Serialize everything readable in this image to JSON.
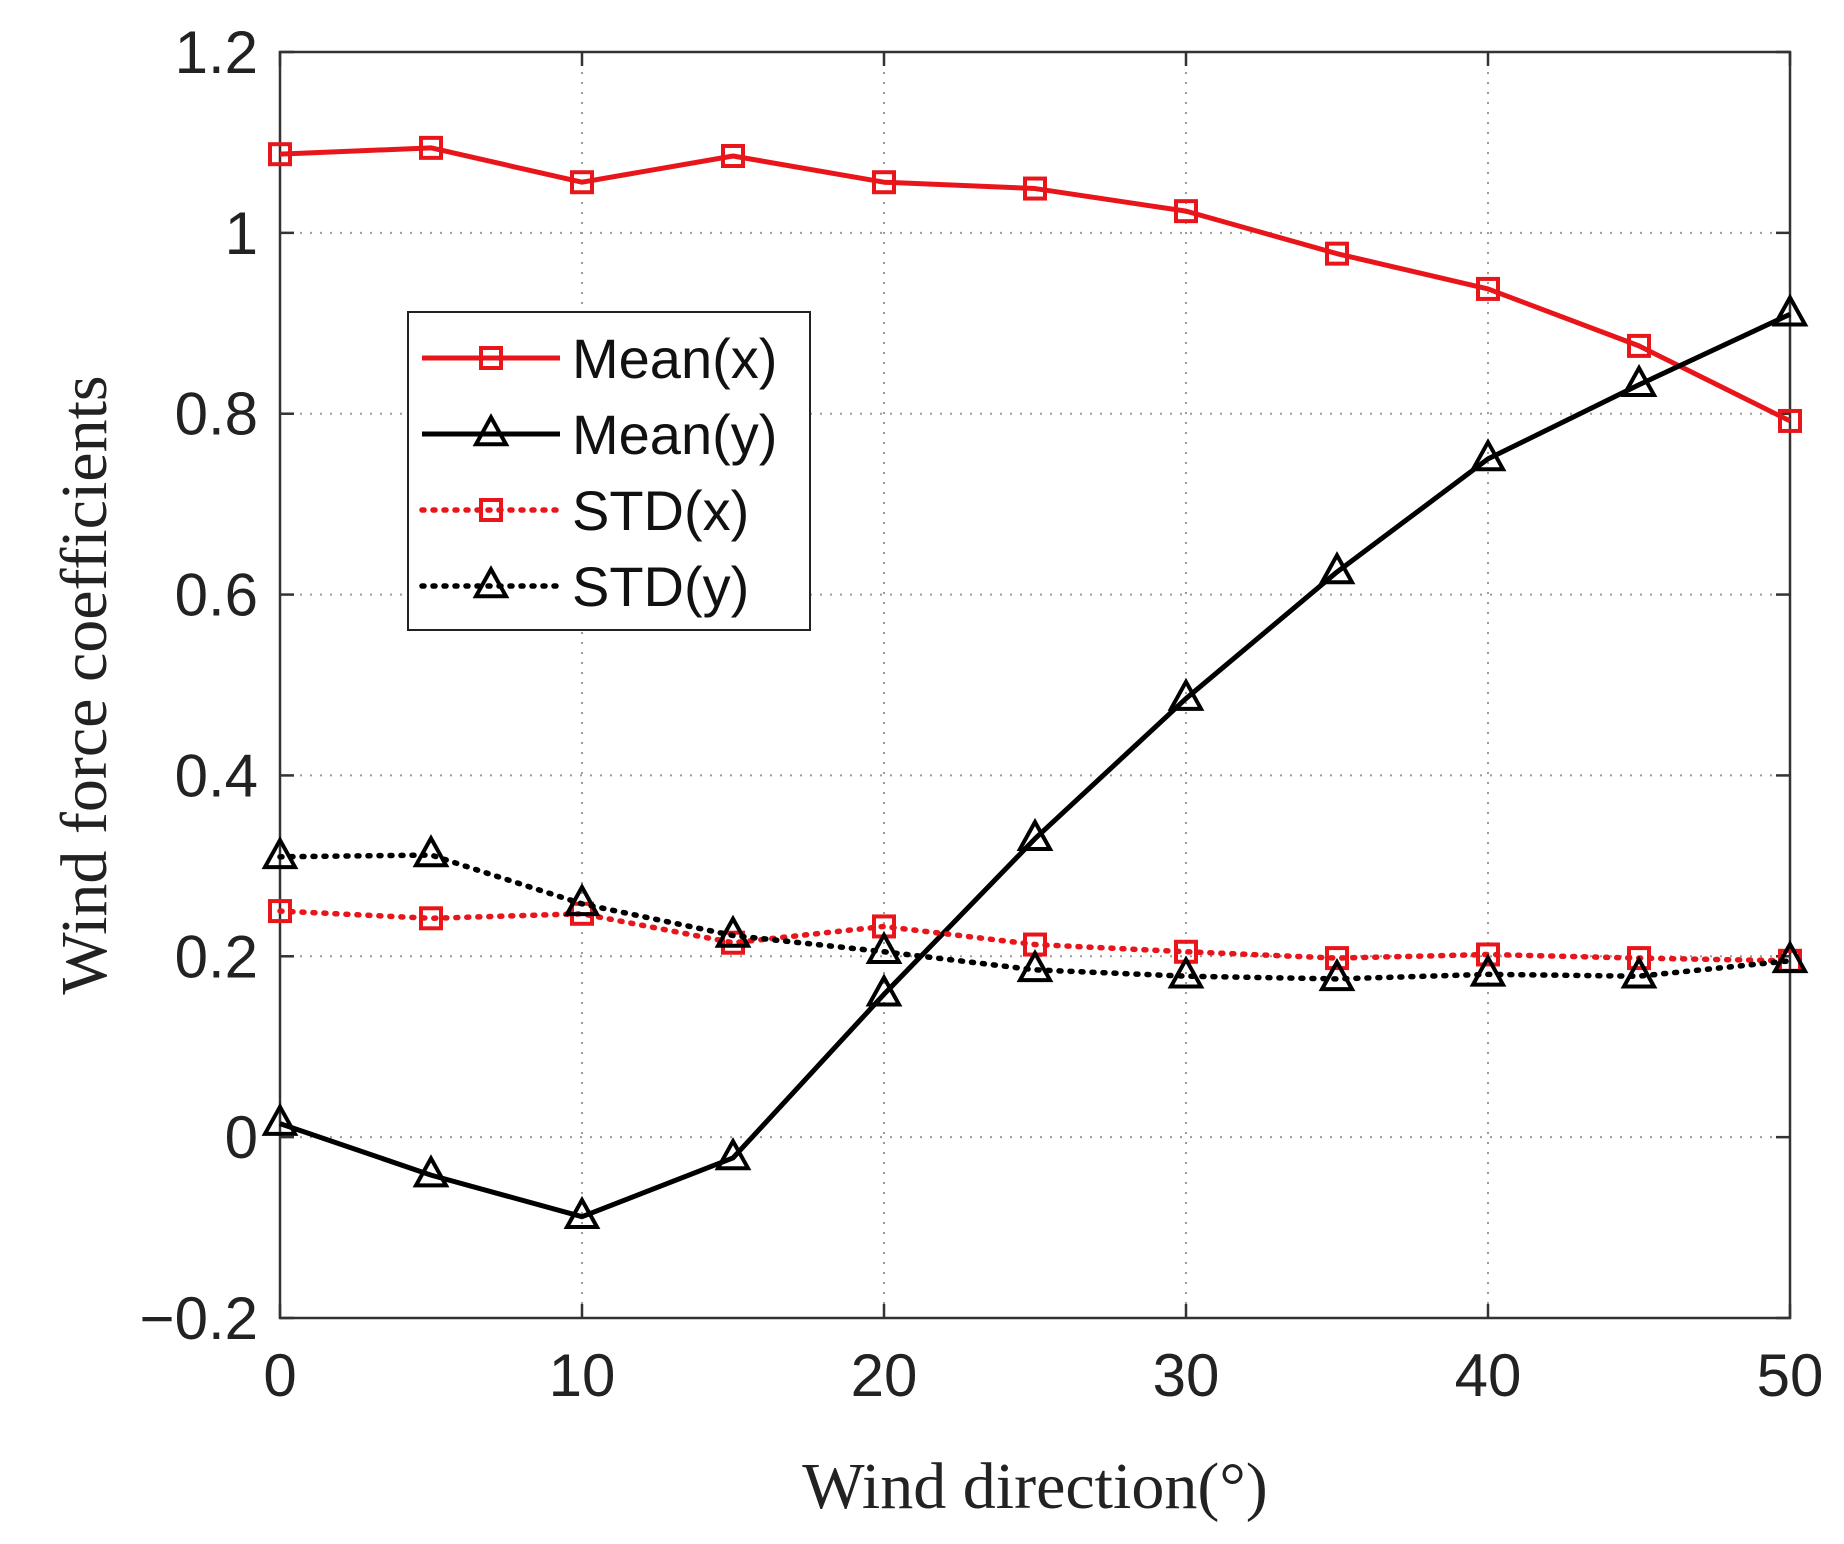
{
  "chart_data": {
    "type": "line",
    "title": "",
    "xlabel": "Wind direction(°)",
    "ylabel": "Wind force coefficients",
    "xlim": [
      0,
      50
    ],
    "ylim": [
      -0.2,
      1.2
    ],
    "xticks": [
      0,
      10,
      20,
      30,
      40,
      50
    ],
    "yticks": [
      -0.2,
      0,
      0.2,
      0.4,
      0.6,
      0.8,
      1,
      1.2
    ],
    "xtick_labels": [
      "0",
      "10",
      "20",
      "30",
      "40",
      "50"
    ],
    "ytick_labels": [
      "−0.2",
      "0",
      "0.2",
      "0.4",
      "0.6",
      "0.8",
      "1",
      "1.2"
    ],
    "grid": true,
    "legend_position": "upper-left",
    "x": [
      0,
      5,
      10,
      15,
      20,
      25,
      30,
      35,
      40,
      45,
      50
    ],
    "series": [
      {
        "name": "Mean(x)",
        "color": "#e8161b",
        "line": "solid",
        "marker": "square",
        "values": [
          1.087,
          1.094,
          1.056,
          1.085,
          1.056,
          1.049,
          1.024,
          0.977,
          0.938,
          0.875,
          0.792
        ]
      },
      {
        "name": "Mean(y)",
        "color": "#000000",
        "line": "solid",
        "marker": "triangle",
        "values": [
          0.015,
          -0.042,
          -0.088,
          -0.023,
          0.158,
          0.33,
          0.485,
          0.625,
          0.75,
          0.832,
          0.91
        ]
      },
      {
        "name": "STD(x)",
        "color": "#e8161b",
        "line": "dotted",
        "marker": "square",
        "values": [
          0.25,
          0.242,
          0.247,
          0.215,
          0.233,
          0.213,
          0.205,
          0.198,
          0.202,
          0.198,
          0.195
        ]
      },
      {
        "name": "STD(y)",
        "color": "#000000",
        "line": "dotted",
        "marker": "triangle",
        "values": [
          0.31,
          0.312,
          0.258,
          0.223,
          0.205,
          0.185,
          0.178,
          0.175,
          0.18,
          0.178,
          0.195
        ]
      }
    ]
  }
}
